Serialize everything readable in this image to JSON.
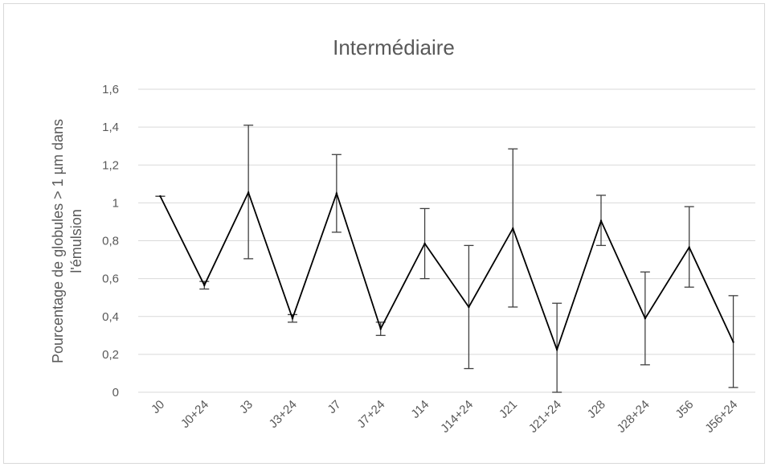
{
  "chart_data": {
    "type": "line",
    "title": "Intermédiaire",
    "xlabel": "",
    "ylabel_lines": [
      "Pourcentage de globules > 1 µm dans",
      "l'émulsion"
    ],
    "categories": [
      "J0",
      "J0+24",
      "J3",
      "J3+24",
      "J7",
      "J7+24",
      "J14",
      "J14+24",
      "J21",
      "J21+24",
      "J28",
      "J28+24",
      "J56",
      "J56+24"
    ],
    "series": [
      {
        "values": [
          1.035,
          0.565,
          1.055,
          0.39,
          1.05,
          0.335,
          0.785,
          0.45,
          0.865,
          0.225,
          0.905,
          0.39,
          0.765,
          0.265
        ],
        "error_upper": [
          1.035,
          0.585,
          1.41,
          0.41,
          1.255,
          0.37,
          0.97,
          0.775,
          1.285,
          0.47,
          1.04,
          0.635,
          0.98,
          0.51
        ],
        "error_lower": [
          1.035,
          0.545,
          0.705,
          0.37,
          0.845,
          0.3,
          0.6,
          0.125,
          0.45,
          0.0,
          0.775,
          0.145,
          0.555,
          0.025
        ]
      }
    ],
    "ylim": [
      0,
      1.6
    ],
    "yticks": [
      0,
      0.2,
      0.4,
      0.6,
      0.8,
      1,
      1.2,
      1.4,
      1.6
    ],
    "ytick_labels": [
      "0",
      "0,2",
      "0,4",
      "0,6",
      "0,8",
      "1",
      "1,2",
      "1,4",
      "1,6"
    ],
    "grid": true,
    "colors": {
      "line": "#000000",
      "error_bar": "#404040",
      "grid": "#d9d9d9",
      "text": "#595959"
    }
  }
}
